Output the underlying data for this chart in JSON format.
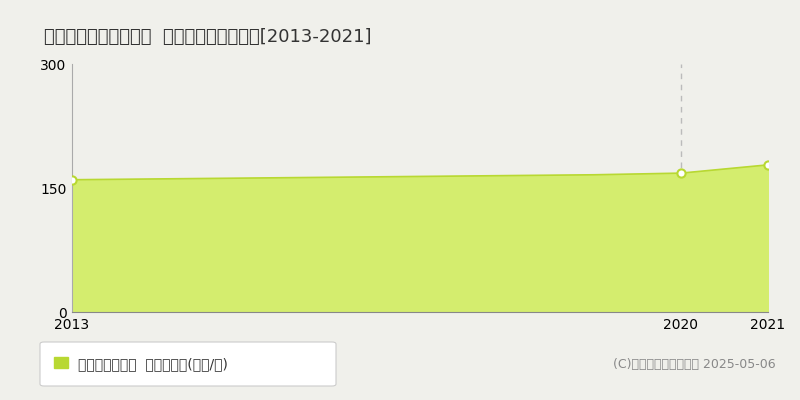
{
  "title": "京都市北区小山下総町  マンション価格推移[2013-2021]",
  "years": [
    2013,
    2014,
    2015,
    2016,
    2017,
    2018,
    2019,
    2020,
    2021
  ],
  "values": [
    160,
    161,
    162,
    163,
    164,
    165,
    166,
    168,
    178
  ],
  "fill_color": "#d4ed6e",
  "line_color": "#b8d832",
  "marker_color": "#ffffff",
  "marker_edge_color": "#b8d832",
  "bg_color": "#f0f0eb",
  "plot_bg_color": "#f0f0eb",
  "ylim": [
    0,
    300
  ],
  "yticks": [
    0,
    150,
    300
  ],
  "xticks": [
    2013,
    2020,
    2021
  ],
  "grid_color": "#bbbbbb",
  "dashed_vline_x": 2020,
  "dashed_hline_y": 150,
  "marker_years": [
    2013,
    2020,
    2021
  ],
  "marker_values": [
    160,
    168,
    178
  ],
  "legend_label": "マンション価格  平均坪単価(万円/坪)",
  "copyright_text": "(C)土地価格ドットコム 2025-05-06",
  "title_fontsize": 13,
  "tick_fontsize": 10,
  "legend_fontsize": 10,
  "copyright_fontsize": 9
}
